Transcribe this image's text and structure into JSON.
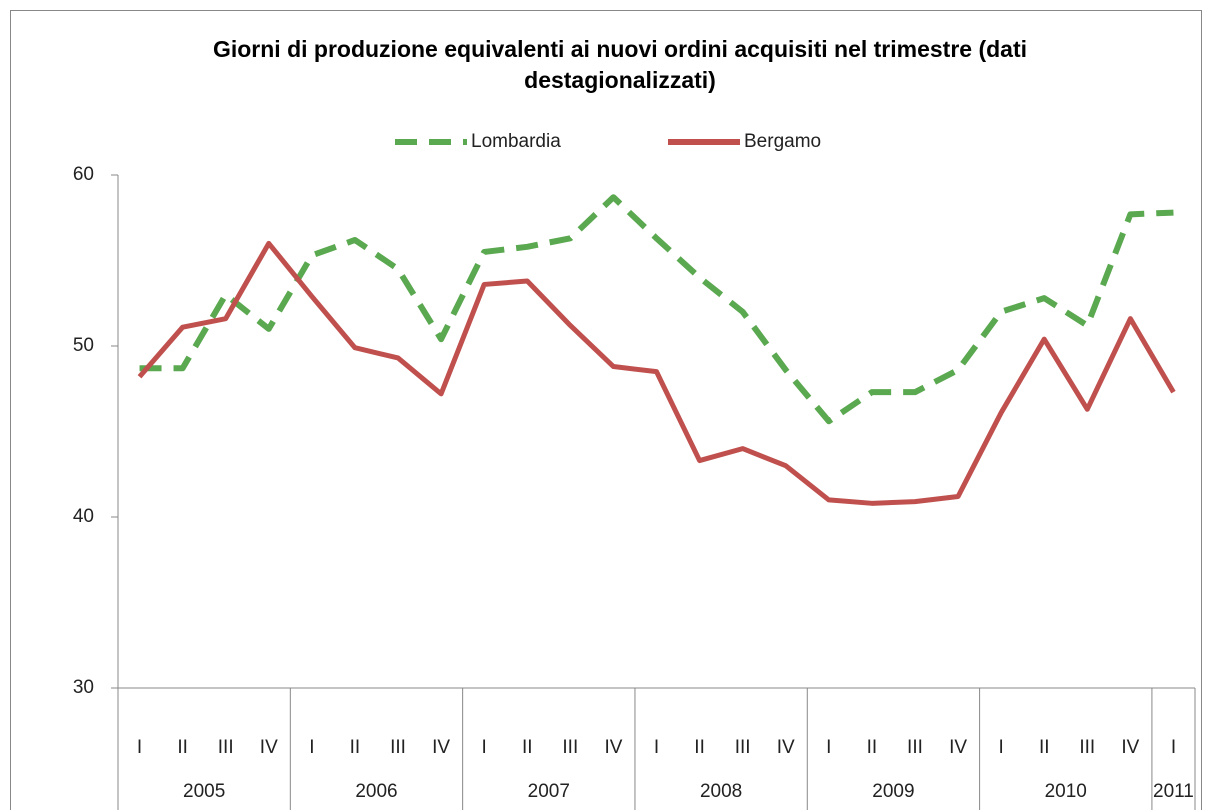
{
  "chart_data": {
    "type": "line",
    "title": "Giorni di produzione equivalenti ai nuovi ordini acquisiti nel trimestre (dati destagionalizzati)",
    "categories": [
      "I",
      "II",
      "III",
      "IV",
      "I",
      "II",
      "III",
      "IV",
      "I",
      "II",
      "III",
      "IV",
      "I",
      "II",
      "III",
      "IV",
      "I",
      "II",
      "III",
      "IV",
      "I",
      "II",
      "III",
      "IV",
      "I"
    ],
    "category_groups": [
      "2005",
      "2006",
      "2007",
      "2008",
      "2009",
      "2010",
      "2011"
    ],
    "ylim": [
      30,
      60
    ],
    "yticks": [
      30,
      40,
      50,
      60
    ],
    "series": [
      {
        "name": "Lombardia",
        "color": "#5aa84f",
        "dashed": true,
        "values": [
          48.7,
          48.7,
          53.0,
          51.0,
          55.3,
          56.2,
          54.5,
          50.4,
          55.5,
          55.8,
          56.3,
          58.7,
          56.3,
          54.0,
          52.0,
          48.6,
          45.6,
          47.3,
          47.3,
          48.6,
          52.0,
          52.8,
          51.2,
          57.7,
          57.8
        ]
      },
      {
        "name": "Bergamo",
        "color": "#c0504d",
        "dashed": false,
        "values": [
          48.2,
          51.1,
          51.6,
          56.0,
          52.9,
          49.9,
          49.3,
          47.2,
          53.6,
          53.8,
          51.2,
          48.8,
          48.5,
          43.3,
          44.0,
          43.0,
          41.0,
          40.8,
          40.9,
          41.2,
          46.1,
          50.4,
          46.3,
          51.6,
          47.3
        ]
      }
    ]
  }
}
